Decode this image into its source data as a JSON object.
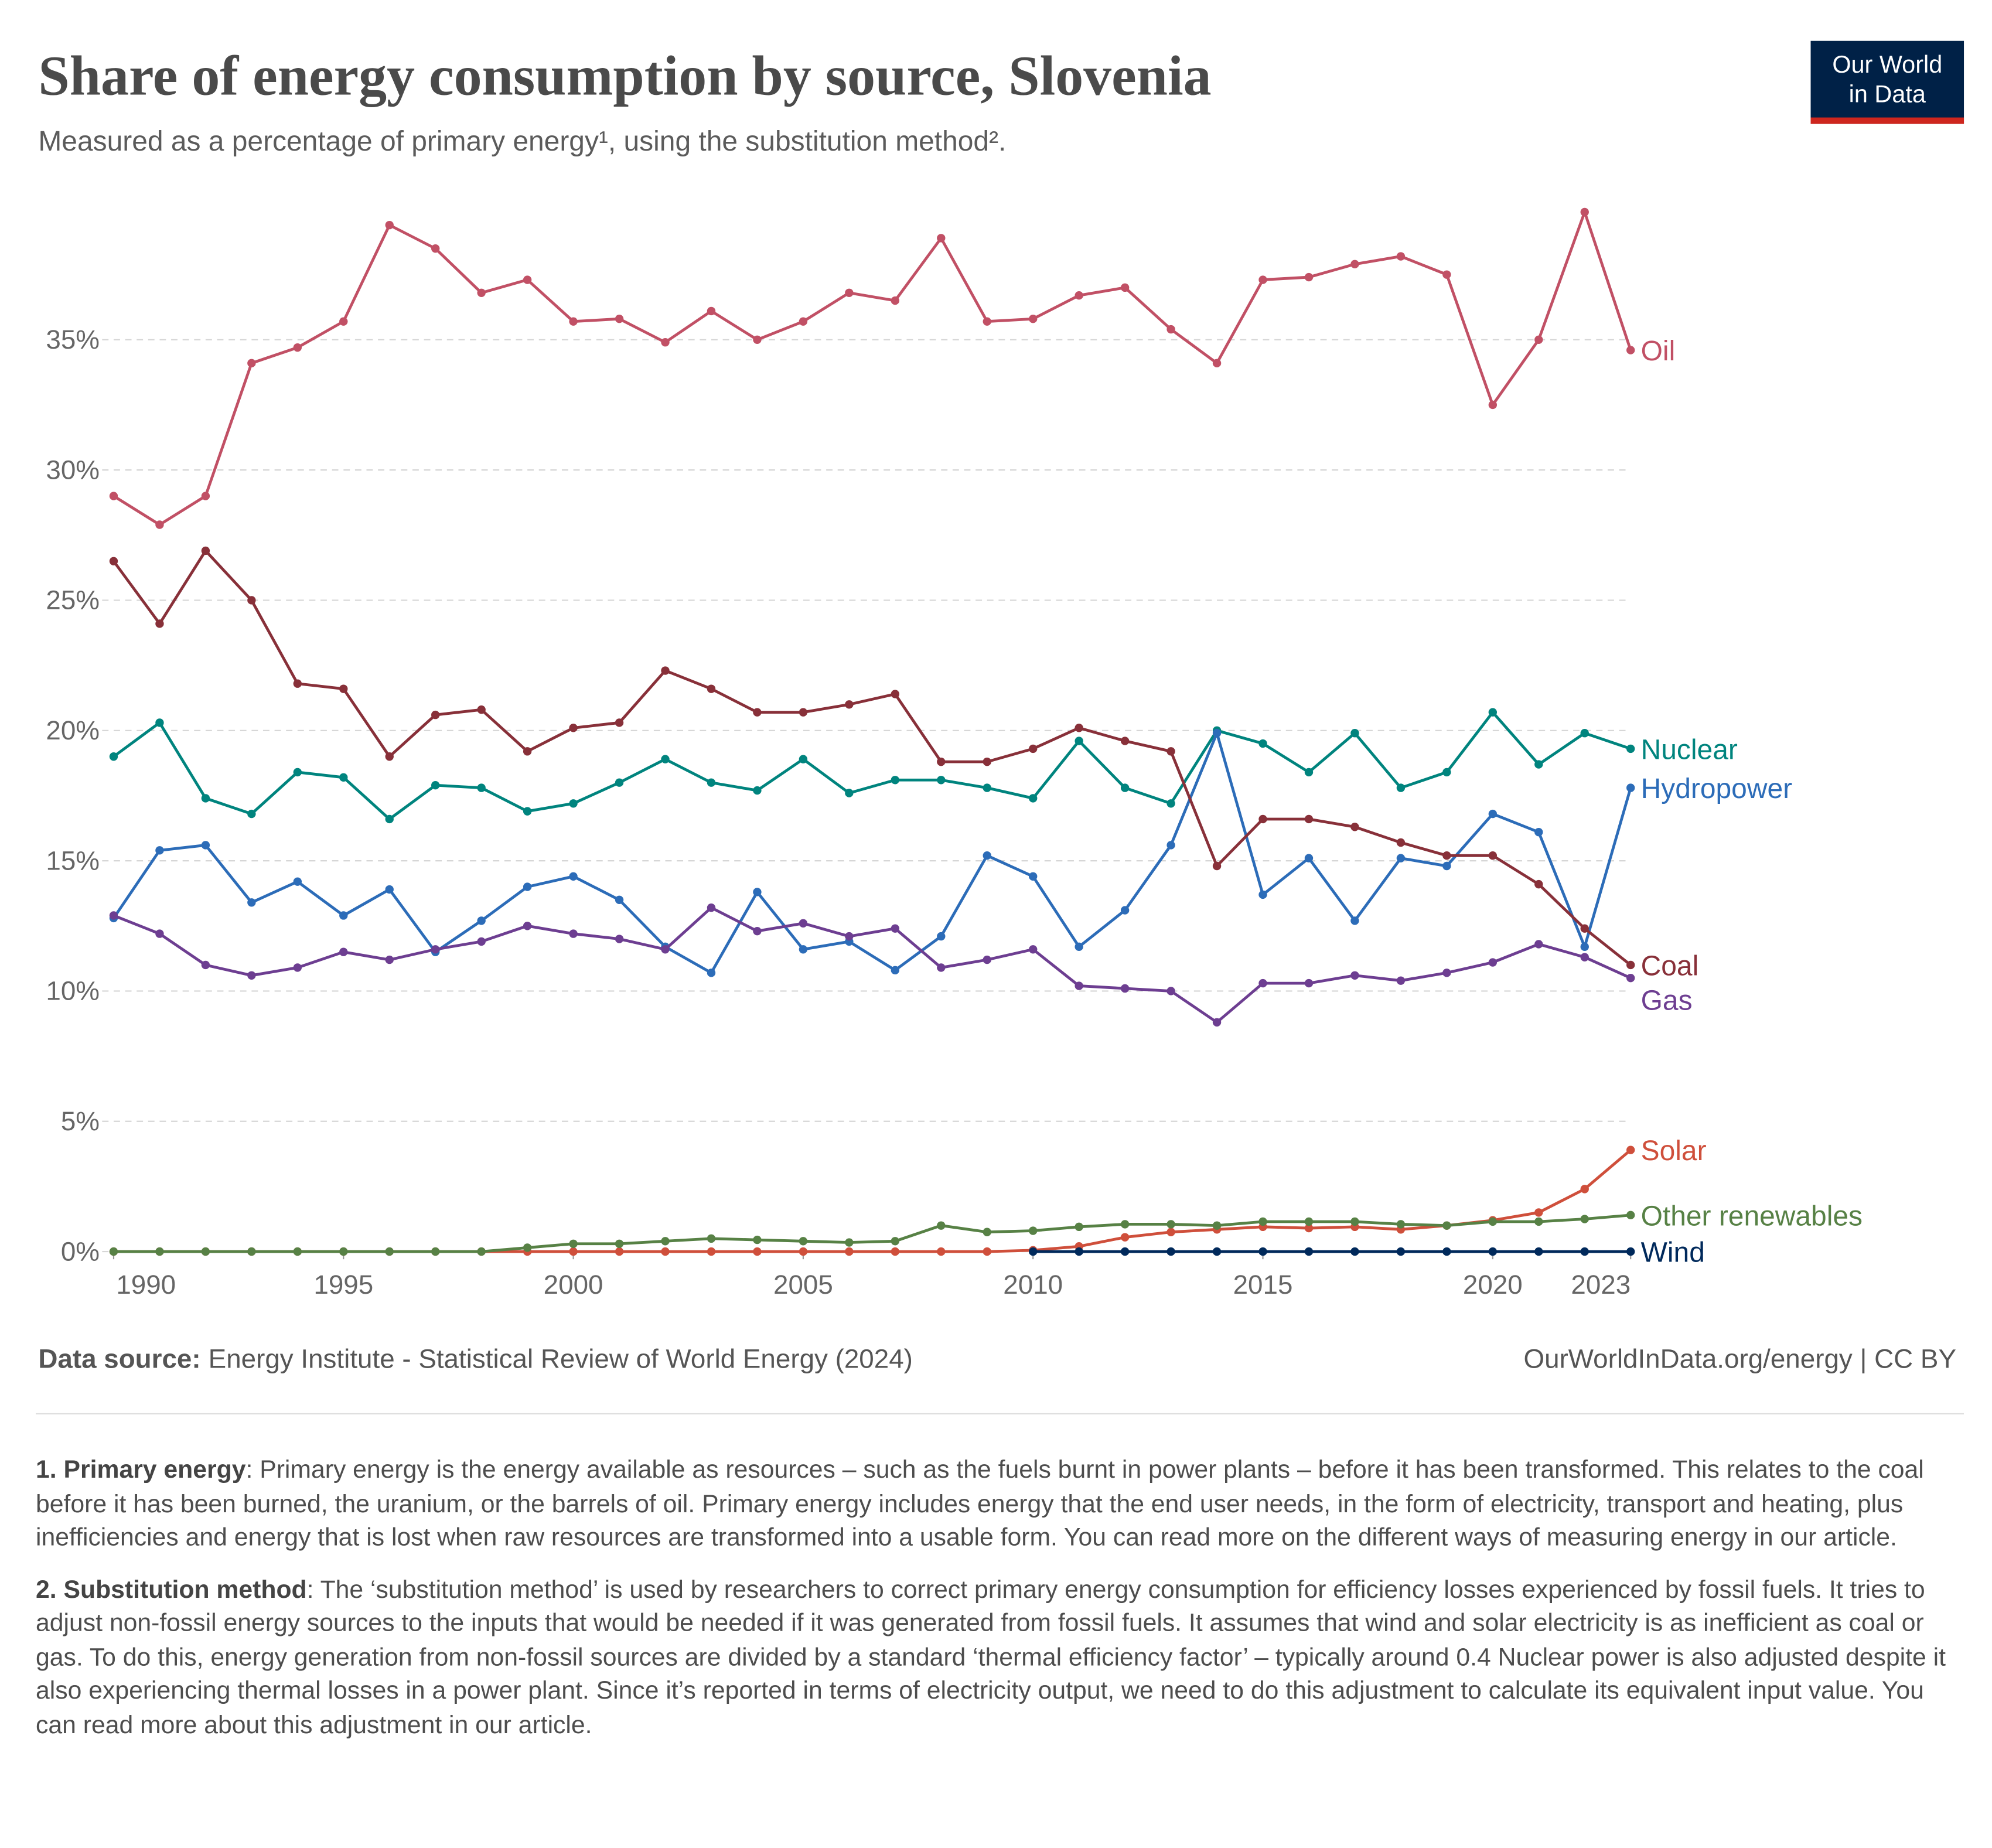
{
  "chart_data": {
    "type": "line",
    "title": "Share of energy consumption by source, Slovenia",
    "subtitle": "Measured as a percentage of primary energy¹, using the substitution method².",
    "logo": [
      "Our World",
      "in Data"
    ],
    "x": [
      1990,
      1991,
      1992,
      1993,
      1994,
      1995,
      1996,
      1997,
      1998,
      1999,
      2000,
      2001,
      2002,
      2003,
      2004,
      2005,
      2006,
      2007,
      2008,
      2009,
      2010,
      2011,
      2012,
      2013,
      2014,
      2015,
      2016,
      2017,
      2018,
      2019,
      2020,
      2021,
      2022,
      2023
    ],
    "xlim": [
      1990,
      2023
    ],
    "xticks": [
      1990,
      1995,
      2000,
      2005,
      2010,
      2015,
      2020,
      2023
    ],
    "ylim": [
      0,
      40
    ],
    "yticks": [
      {
        "value": 0,
        "label": "0%"
      },
      {
        "value": 5,
        "label": "5%"
      },
      {
        "value": 10,
        "label": "10%"
      },
      {
        "value": 15,
        "label": "15%"
      },
      {
        "value": 20,
        "label": "20%"
      },
      {
        "value": 25,
        "label": "25%"
      },
      {
        "value": 30,
        "label": "30%"
      },
      {
        "value": 35,
        "label": "35%"
      }
    ],
    "grid": true,
    "series": [
      {
        "name": "Oil",
        "color": "#c15065",
        "values": [
          29.0,
          27.9,
          29.0,
          34.1,
          34.7,
          35.7,
          39.4,
          38.5,
          36.8,
          37.3,
          35.7,
          35.8,
          34.9,
          36.1,
          35.0,
          35.7,
          36.8,
          36.5,
          38.9,
          35.7,
          35.8,
          36.7,
          37.0,
          35.4,
          34.1,
          37.3,
          37.4,
          37.9,
          38.2,
          37.5,
          32.5,
          35.0,
          39.9,
          34.6
        ]
      },
      {
        "name": "Nuclear",
        "color": "#00847e",
        "values": [
          19.0,
          20.3,
          17.4,
          16.8,
          18.4,
          18.2,
          16.6,
          17.9,
          17.8,
          16.9,
          17.2,
          18.0,
          18.9,
          18.0,
          17.7,
          18.9,
          17.6,
          18.1,
          18.1,
          17.8,
          17.4,
          19.6,
          17.8,
          17.2,
          20.0,
          19.5,
          18.4,
          19.9,
          17.8,
          18.4,
          20.7,
          18.7,
          19.9,
          19.3
        ]
      },
      {
        "name": "Hydropower",
        "color": "#2c6cb8",
        "values": [
          12.8,
          15.4,
          15.6,
          13.4,
          14.2,
          12.9,
          13.9,
          11.5,
          12.7,
          14.0,
          14.4,
          13.5,
          11.7,
          10.7,
          13.8,
          11.6,
          11.9,
          10.8,
          12.1,
          15.2,
          14.4,
          11.7,
          13.1,
          15.6,
          19.9,
          13.7,
          15.1,
          12.7,
          15.1,
          14.8,
          16.8,
          16.1,
          11.7,
          17.8
        ]
      },
      {
        "name": "Coal",
        "color": "#883039",
        "values": [
          26.5,
          24.1,
          26.9,
          25.0,
          21.8,
          21.6,
          19.0,
          20.6,
          20.8,
          19.2,
          20.1,
          20.3,
          22.3,
          21.6,
          20.7,
          20.7,
          21.0,
          21.4,
          18.8,
          18.8,
          19.3,
          20.1,
          19.6,
          19.2,
          14.8,
          16.6,
          16.6,
          16.3,
          15.7,
          15.2,
          15.2,
          14.1,
          12.4,
          11.0
        ]
      },
      {
        "name": "Gas",
        "color": "#6d3e91",
        "values": [
          12.9,
          12.2,
          11.0,
          10.6,
          10.9,
          11.5,
          11.2,
          11.6,
          11.9,
          12.5,
          12.2,
          12.0,
          11.6,
          13.2,
          12.3,
          12.6,
          12.1,
          12.4,
          10.9,
          11.2,
          11.6,
          10.2,
          10.1,
          10.0,
          8.8,
          10.3,
          10.3,
          10.6,
          10.4,
          10.7,
          11.1,
          11.8,
          11.3,
          10.5
        ]
      },
      {
        "name": "Solar",
        "color": "#cf4f3b",
        "values": [
          0,
          0,
          0,
          0,
          0,
          0,
          0,
          0,
          0,
          0,
          0,
          0,
          0,
          0,
          0,
          0,
          0,
          0,
          0,
          0,
          0.05,
          0.2,
          0.55,
          0.75,
          0.85,
          0.95,
          0.9,
          0.95,
          0.85,
          1.0,
          1.2,
          1.5,
          2.4,
          3.9
        ]
      },
      {
        "name": "Other renewables",
        "color": "#578145",
        "values": [
          0,
          0,
          0,
          0,
          0,
          0,
          0,
          0,
          0,
          0.15,
          0.3,
          0.3,
          0.4,
          0.5,
          0.45,
          0.4,
          0.35,
          0.4,
          1.0,
          0.75,
          0.8,
          0.95,
          1.05,
          1.05,
          1.0,
          1.15,
          1.15,
          1.15,
          1.05,
          1.0,
          1.15,
          1.15,
          1.25,
          1.4
        ]
      },
      {
        "name": "Wind",
        "color": "#00295b",
        "values": [
          null,
          null,
          null,
          null,
          null,
          null,
          null,
          null,
          null,
          null,
          null,
          null,
          null,
          null,
          null,
          null,
          null,
          null,
          null,
          null,
          0,
          0,
          0,
          0,
          0,
          0,
          0,
          0,
          0,
          0,
          0,
          0,
          0,
          0
        ]
      }
    ],
    "source_label": "Data source:",
    "source": "Energy Institute - Statistical Review of World Energy (2024)",
    "credit": "OurWorldInData.org/energy | CC BY",
    "notes": [
      {
        "term": "1. Primary energy",
        "text": ": Primary energy is the energy available as resources – such as the fuels burnt in power plants – before it has been transformed. This relates to the coal before it has been burned, the uranium, or the barrels of oil. Primary energy includes energy that the end user needs, in the form of electricity, transport and heating, plus inefficiencies and energy that is lost when raw resources are transformed into a usable form. You can read more on the different ways of measuring energy in our article."
      },
      {
        "term": "2. Substitution method",
        "text": ": The ‘substitution method’ is used by researchers to correct primary energy consumption for efficiency losses experienced by fossil fuels. It tries to adjust non-fossil energy sources to the inputs that would be needed if it was generated from fossil fuels. It assumes that wind and solar electricity is as inefficient as coal or gas. To do this, energy generation from non-fossil sources are divided by a standard ‘thermal efficiency factor’ – typically around 0.4 Nuclear power is also adjusted despite it also experiencing thermal losses in a power plant. Since it’s reported in terms of electricity output, we need to do this adjustment to calculate its equivalent input value. You can read more about this adjustment in our article."
      }
    ]
  }
}
